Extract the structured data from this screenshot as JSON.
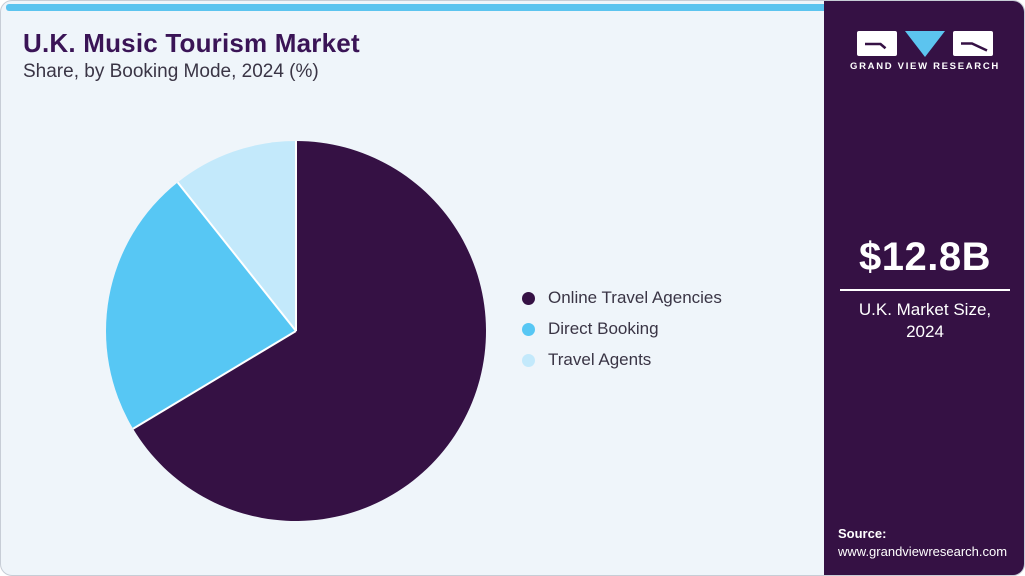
{
  "header": {
    "title": "U.K. Music Tourism Market",
    "subtitle": "Share, by Booking Mode, 2024 (%)"
  },
  "chart_data": {
    "type": "pie",
    "title": "U.K. Music Tourism Market Share, by Booking Mode, 2024 (%)",
    "categories": [
      "Online Travel Agencies",
      "Direct Booking",
      "Travel Agents"
    ],
    "values": [
      66.4,
      22.9,
      10.7
    ],
    "unit": "percent",
    "colors": [
      "#351144",
      "#57C7F4",
      "#C3E9FB"
    ],
    "start_angle_deg": 0,
    "direction": "clockwise",
    "legend_position": "right",
    "slice_separator_color": "#FFFFFF"
  },
  "sidebar": {
    "brand": "GRAND VIEW RESEARCH",
    "market_size": "$12.8B",
    "market_size_label": "U.K. Market Size, 2024",
    "source_label": "Source:",
    "source_url": "www.grandviewresearch.com"
  },
  "colors": {
    "background": "#EFF5FA",
    "accent_blue": "#5CC4EF",
    "brand_purple": "#351144",
    "title_purple": "#3A1456",
    "text_dark": "#3A3545",
    "card_border": "#C7CDD6"
  }
}
